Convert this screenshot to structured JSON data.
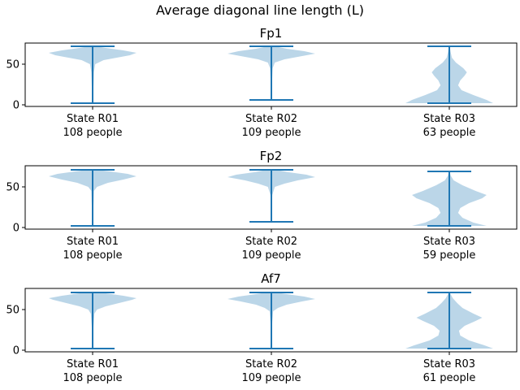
{
  "suptitle": "Average diagonal line length (L)",
  "colors": {
    "violin_fill": "#1f77b4",
    "violin_line": "#1f77b4",
    "axes": "#000000",
    "background": "#ffffff"
  },
  "chart_data": [
    {
      "type": "violin",
      "title": "Fp1",
      "xlabel": "",
      "ylabel": "",
      "ylim": [
        -2,
        76
      ],
      "yticks": [
        0,
        50
      ],
      "grid": false,
      "categories": [
        {
          "state": "State R01",
          "count_label": "108 people",
          "min": 2,
          "max": 72,
          "density": [
            [
              2,
              0.01
            ],
            [
              10,
              0.01
            ],
            [
              25,
              0.02
            ],
            [
              40,
              0.03
            ],
            [
              50,
              0.06
            ],
            [
              55,
              0.25
            ],
            [
              58,
              0.55
            ],
            [
              61,
              0.85
            ],
            [
              64,
              1.0
            ],
            [
              67,
              0.7
            ],
            [
              70,
              0.3
            ],
            [
              72,
              0.08
            ]
          ]
        },
        {
          "state": "State R02",
          "count_label": "109 people",
          "min": 6,
          "max": 72,
          "density": [
            [
              6,
              0.01
            ],
            [
              20,
              0.01
            ],
            [
              35,
              0.02
            ],
            [
              45,
              0.03
            ],
            [
              52,
              0.08
            ],
            [
              56,
              0.3
            ],
            [
              60,
              0.7
            ],
            [
              63,
              1.0
            ],
            [
              66,
              0.75
            ],
            [
              69,
              0.35
            ],
            [
              72,
              0.08
            ]
          ]
        },
        {
          "state": "State R03",
          "count_label": "63 people",
          "min": 2,
          "max": 72,
          "density": [
            [
              2,
              1.0
            ],
            [
              6,
              0.85
            ],
            [
              12,
              0.55
            ],
            [
              18,
              0.28
            ],
            [
              24,
              0.2
            ],
            [
              30,
              0.25
            ],
            [
              36,
              0.35
            ],
            [
              40,
              0.4
            ],
            [
              45,
              0.32
            ],
            [
              52,
              0.15
            ],
            [
              58,
              0.06
            ],
            [
              65,
              0.03
            ],
            [
              72,
              0.01
            ]
          ]
        }
      ]
    },
    {
      "type": "violin",
      "title": "Fp2",
      "xlabel": "",
      "ylabel": "",
      "ylim": [
        -2,
        76
      ],
      "yticks": [
        0,
        50
      ],
      "grid": false,
      "categories": [
        {
          "state": "State R01",
          "count_label": "108 people",
          "min": 2,
          "max": 71,
          "density": [
            [
              2,
              0.01
            ],
            [
              15,
              0.01
            ],
            [
              30,
              0.02
            ],
            [
              45,
              0.03
            ],
            [
              50,
              0.1
            ],
            [
              55,
              0.35
            ],
            [
              59,
              0.7
            ],
            [
              63,
              1.0
            ],
            [
              66,
              0.8
            ],
            [
              69,
              0.4
            ],
            [
              71,
              0.1
            ]
          ]
        },
        {
          "state": "State R02",
          "count_label": "109 people",
          "min": 7,
          "max": 71,
          "density": [
            [
              7,
              0.01
            ],
            [
              25,
              0.01
            ],
            [
              40,
              0.02
            ],
            [
              50,
              0.08
            ],
            [
              54,
              0.3
            ],
            [
              58,
              0.6
            ],
            [
              62,
              1.0
            ],
            [
              65,
              0.8
            ],
            [
              68,
              0.4
            ],
            [
              71,
              0.1
            ]
          ]
        },
        {
          "state": "State R03",
          "count_label": "59 people",
          "min": 2,
          "max": 69,
          "density": [
            [
              2,
              0.85
            ],
            [
              6,
              0.55
            ],
            [
              12,
              0.3
            ],
            [
              18,
              0.2
            ],
            [
              24,
              0.25
            ],
            [
              30,
              0.45
            ],
            [
              36,
              0.75
            ],
            [
              40,
              0.85
            ],
            [
              45,
              0.6
            ],
            [
              52,
              0.3
            ],
            [
              58,
              0.1
            ],
            [
              64,
              0.03
            ],
            [
              69,
              0.01
            ]
          ]
        }
      ]
    },
    {
      "type": "violin",
      "title": "Af7",
      "xlabel": "",
      "ylabel": "",
      "ylim": [
        -2,
        76
      ],
      "yticks": [
        0,
        50
      ],
      "grid": false,
      "categories": [
        {
          "state": "State R01",
          "count_label": "108 people",
          "min": 2,
          "max": 71,
          "density": [
            [
              2,
              0.01
            ],
            [
              15,
              0.01
            ],
            [
              30,
              0.02
            ],
            [
              45,
              0.04
            ],
            [
              50,
              0.1
            ],
            [
              54,
              0.3
            ],
            [
              58,
              0.6
            ],
            [
              62,
              0.9
            ],
            [
              64,
              1.0
            ],
            [
              67,
              0.7
            ],
            [
              70,
              0.3
            ],
            [
              71,
              0.1
            ]
          ]
        },
        {
          "state": "State R02",
          "count_label": "109 people",
          "min": 2,
          "max": 71,
          "density": [
            [
              2,
              0.01
            ],
            [
              20,
              0.01
            ],
            [
              35,
              0.02
            ],
            [
              48,
              0.04
            ],
            [
              52,
              0.15
            ],
            [
              56,
              0.35
            ],
            [
              60,
              0.7
            ],
            [
              63,
              1.0
            ],
            [
              66,
              0.75
            ],
            [
              69,
              0.35
            ],
            [
              71,
              0.1
            ]
          ]
        },
        {
          "state": "State R03",
          "count_label": "61 people",
          "min": 2,
          "max": 71,
          "density": [
            [
              2,
              1.0
            ],
            [
              6,
              0.8
            ],
            [
              12,
              0.45
            ],
            [
              18,
              0.25
            ],
            [
              24,
              0.22
            ],
            [
              30,
              0.35
            ],
            [
              36,
              0.6
            ],
            [
              40,
              0.75
            ],
            [
              45,
              0.55
            ],
            [
              52,
              0.3
            ],
            [
              58,
              0.18
            ],
            [
              64,
              0.08
            ],
            [
              71,
              0.01
            ]
          ]
        }
      ]
    }
  ]
}
